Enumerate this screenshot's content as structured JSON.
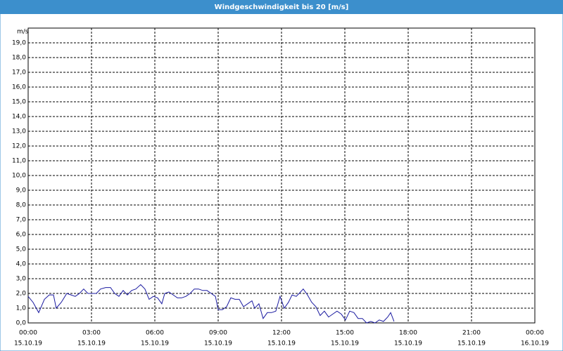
{
  "chart_data": {
    "type": "line",
    "title": "Windgeschwindigkeit bis 20 [m/s]",
    "y_label": "m/s",
    "x": [
      0,
      0.23,
      0.5,
      0.77,
      1,
      1.2,
      1.33,
      1.57,
      1.83,
      2.03,
      2.23,
      2.43,
      2.63,
      2.83,
      3.03,
      3.23,
      3.43,
      3.67,
      3.9,
      4.1,
      4.3,
      4.5,
      4.7,
      4.9,
      5.1,
      5.33,
      5.53,
      5.73,
      5.93,
      6.13,
      6.33,
      6.47,
      6.67,
      6.87,
      7.07,
      7.27,
      7.47,
      7.67,
      7.87,
      8.07,
      8.27,
      8.47,
      8.67,
      8.87,
      9,
      9.2,
      9.4,
      9.6,
      9.8,
      10,
      10.2,
      10.4,
      10.6,
      10.73,
      10.93,
      11.13,
      11.33,
      11.53,
      11.73,
      11.93,
      12.13,
      12.33,
      12.5,
      12.7,
      12.9,
      13.03,
      13.23,
      13.43,
      13.63,
      13.83,
      14.03,
      14.23,
      14.43,
      14.63,
      14.83,
      15.03,
      15.23,
      15.43,
      15.63,
      15.83,
      16.03,
      16.23,
      16.43,
      16.63,
      16.83,
      17.03,
      17.17,
      17.33
    ],
    "series": [
      {
        "color": "#1a1aa0",
        "values": [
          1.8,
          1.4,
          0.7,
          1.6,
          1.9,
          1.9,
          1.0,
          1.4,
          2.0,
          1.9,
          1.8,
          2.0,
          2.3,
          2.0,
          2.0,
          2.0,
          2.3,
          2.4,
          2.4,
          2.0,
          1.8,
          2.2,
          1.9,
          2.2,
          2.3,
          2.6,
          2.3,
          1.6,
          1.8,
          1.7,
          1.3,
          2.0,
          2.1,
          1.9,
          1.7,
          1.7,
          1.8,
          2.0,
          2.3,
          2.3,
          2.2,
          2.2,
          2.0,
          1.8,
          0.9,
          0.9,
          1.1,
          1.7,
          1.6,
          1.6,
          1.1,
          1.3,
          1.5,
          1.0,
          1.3,
          0.3,
          0.7,
          0.7,
          0.8,
          1.8,
          1.0,
          1.4,
          1.9,
          1.8,
          2.1,
          2.3,
          1.9,
          1.4,
          1.1,
          0.5,
          0.8,
          0.4,
          0.6,
          0.8,
          0.6,
          0.2,
          0.8,
          0.7,
          0.3,
          0.3,
          0.0,
          0.1,
          0.0,
          0.2,
          0.1,
          0.4,
          0.7,
          0.1
        ]
      }
    ],
    "xlim": [
      0,
      24
    ],
    "xticks": [
      {
        "value": 0,
        "label": "00:00"
      },
      {
        "value": 3,
        "label": "03:00"
      },
      {
        "value": 6,
        "label": "06:00"
      },
      {
        "value": 9,
        "label": "09:00"
      },
      {
        "value": 12,
        "label": "12:00"
      },
      {
        "value": 15,
        "label": "15:00"
      },
      {
        "value": 18,
        "label": "18:00"
      },
      {
        "value": 21,
        "label": "21:00"
      },
      {
        "value": 24,
        "label": "00:00"
      }
    ],
    "xtick_dates": [
      "15.10.19",
      "15.10.19",
      "15.10.19",
      "15.10.19",
      "15.10.19",
      "15.10.19",
      "15.10.19",
      "15.10.19",
      "16.10.19"
    ],
    "ylim": [
      0,
      20
    ],
    "yticks": [
      {
        "value": 0,
        "label": "0,0"
      },
      {
        "value": 1,
        "label": "1,0"
      },
      {
        "value": 2,
        "label": "2,0"
      },
      {
        "value": 3,
        "label": "3,0"
      },
      {
        "value": 4,
        "label": "4,0"
      },
      {
        "value": 5,
        "label": "5,0"
      },
      {
        "value": 6,
        "label": "6,0"
      },
      {
        "value": 7,
        "label": "7,0"
      },
      {
        "value": 8,
        "label": "8,0"
      },
      {
        "value": 9,
        "label": "9,0"
      },
      {
        "value": 10,
        "label": "10,0"
      },
      {
        "value": 11,
        "label": "11,0"
      },
      {
        "value": 12,
        "label": "12,0"
      },
      {
        "value": 13,
        "label": "13,0"
      },
      {
        "value": 14,
        "label": "14,0"
      },
      {
        "value": 15,
        "label": "15,0"
      },
      {
        "value": 16,
        "label": "16,0"
      },
      {
        "value": 17,
        "label": "17,0"
      },
      {
        "value": 18,
        "label": "18,0"
      },
      {
        "value": 19,
        "label": "19,0"
      }
    ],
    "grid": true
  }
}
